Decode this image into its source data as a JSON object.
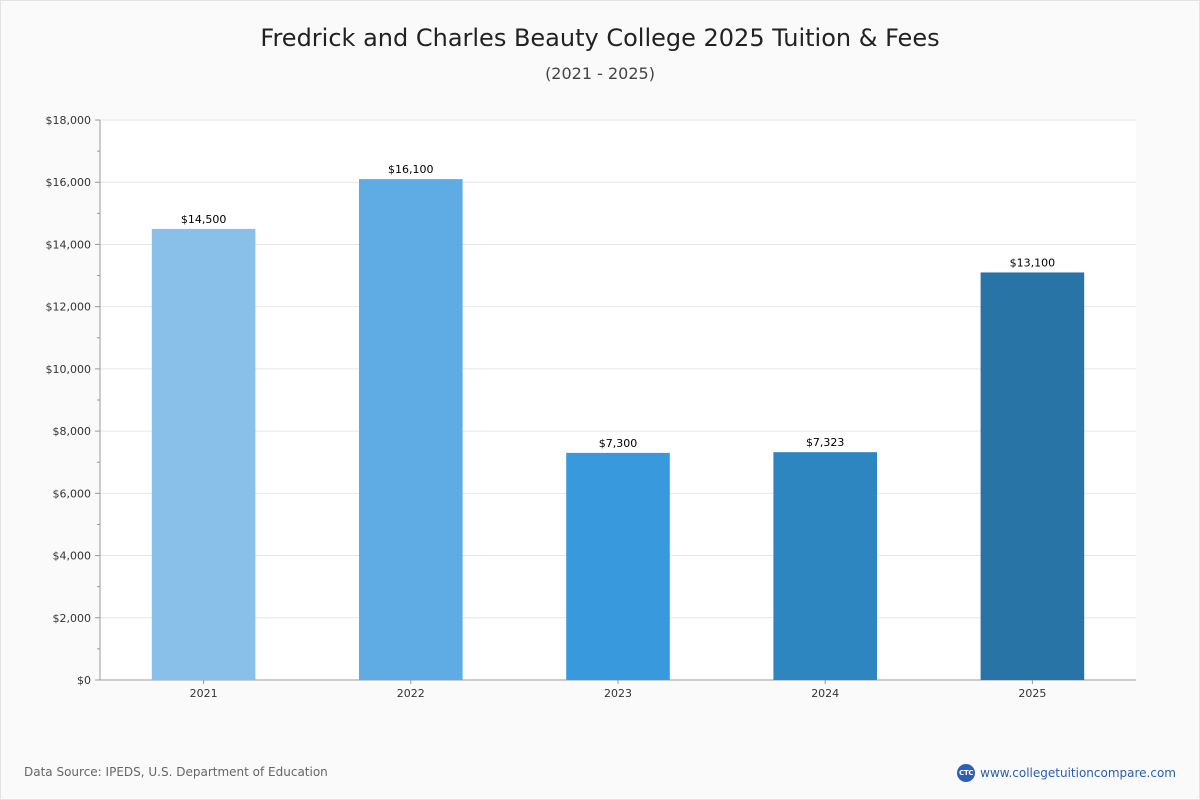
{
  "chart_data": {
    "type": "bar",
    "title": "Fredrick and Charles Beauty College 2025 Tuition & Fees",
    "subtitle": "(2021 - 2025)",
    "categories": [
      "2021",
      "2022",
      "2023",
      "2024",
      "2025"
    ],
    "values": [
      14500,
      16100,
      7300,
      7323,
      13100
    ],
    "value_labels": [
      "$14,500",
      "$16,100",
      "$7,300",
      "$7,323",
      "$13,100"
    ],
    "bar_colors": [
      "#88c0ea",
      "#5eace3",
      "#3899dc",
      "#2e86c1",
      "#2874a6"
    ],
    "ylim": [
      0,
      18000
    ],
    "y_ticks": [
      0,
      2000,
      4000,
      6000,
      8000,
      10000,
      12000,
      14000,
      16000,
      18000
    ],
    "y_tick_labels": [
      "$0",
      "$2,000",
      "$4,000",
      "$6,000",
      "$8,000",
      "$10,000",
      "$12,000",
      "$14,000",
      "$16,000",
      "$18,000"
    ],
    "grid": true,
    "legend": "none"
  },
  "footer": {
    "source": "Data Source: IPEDS, U.S. Department of Education",
    "brand_logo": "CTC",
    "brand_url": "www.collegetuitioncompare.com"
  }
}
